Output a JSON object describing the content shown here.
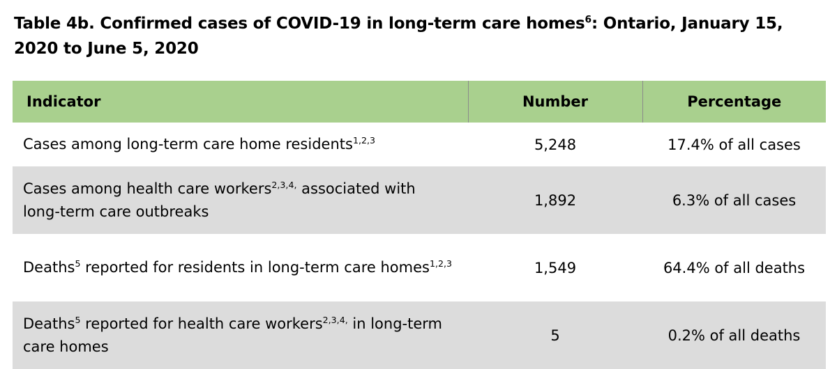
{
  "title": {
    "text_a": "Table 4b. Confirmed cases of COVID-19 in long-term care homes",
    "sup": "6",
    "text_b": ": Ontario, January 15, 2020 to June 5, 2020"
  },
  "table": {
    "headers": [
      "Indicator",
      "Number",
      "Percentage"
    ],
    "rows": [
      {
        "ind_a": "Cases among long-term care home residents",
        "ind_sup_a": "1,2,3",
        "number": "5,248",
        "percentage": "17.4% of all cases"
      },
      {
        "ind_a": "Cases among health care workers",
        "ind_sup_a": "2,3,4,",
        "ind_b": " associated with long-term care outbreaks",
        "number": "1,892",
        "percentage": "6.3% of all cases"
      },
      {
        "ind_a": "Deaths",
        "ind_sup_a": "5",
        "ind_b": " reported for residents in long-term care homes",
        "ind_sup_b": "1,2,3",
        "number": "1,549",
        "percentage": "64.4% of all deaths"
      },
      {
        "ind_a": "Deaths",
        "ind_sup_a": "5",
        "ind_b": " reported for health care workers",
        "ind_sup_b": "2,3,4,",
        "ind_c": " in long-term care homes",
        "number": "5",
        "percentage": "0.2% of all deaths"
      }
    ]
  }
}
